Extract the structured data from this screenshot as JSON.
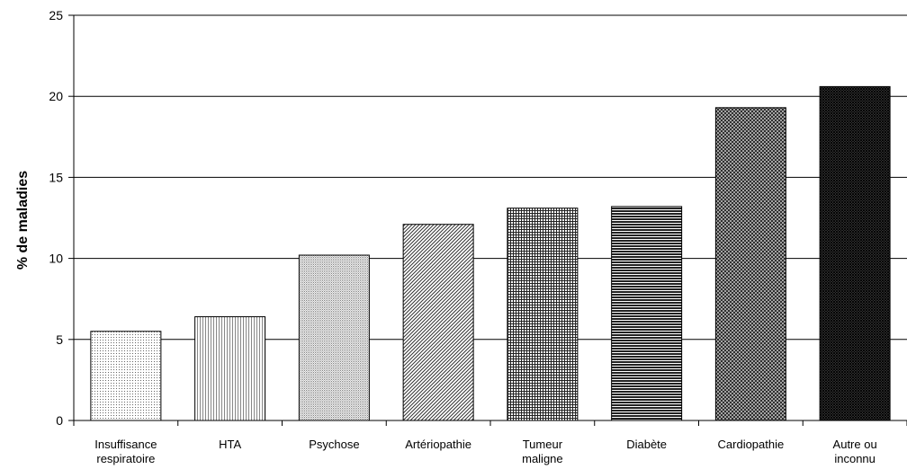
{
  "chart_data": {
    "type": "bar",
    "title": "",
    "xlabel": "",
    "ylabel": "% de maladies",
    "ylim": [
      0,
      25
    ],
    "yticks": [
      0,
      5,
      10,
      15,
      20,
      25
    ],
    "grid": true,
    "legend": "none",
    "categories": [
      [
        "Insuffisance",
        "respiratoire"
      ],
      [
        "HTA"
      ],
      [
        "Psychose"
      ],
      [
        "Artériopathie"
      ],
      [
        "Tumeur",
        "maligne"
      ],
      [
        "Diabète"
      ],
      [
        "Cardiopathie"
      ],
      [
        "Autre ou",
        "inconnu"
      ]
    ],
    "values": [
      5.5,
      6.4,
      10.2,
      12.1,
      13.1,
      13.2,
      19.3,
      20.6
    ],
    "patterns": [
      "dots-sparse",
      "vlines-fine",
      "dots-medium",
      "diag-fine",
      "grid-fine",
      "hlines-dense",
      "crosshatch",
      "crosshatch-dark"
    ]
  }
}
